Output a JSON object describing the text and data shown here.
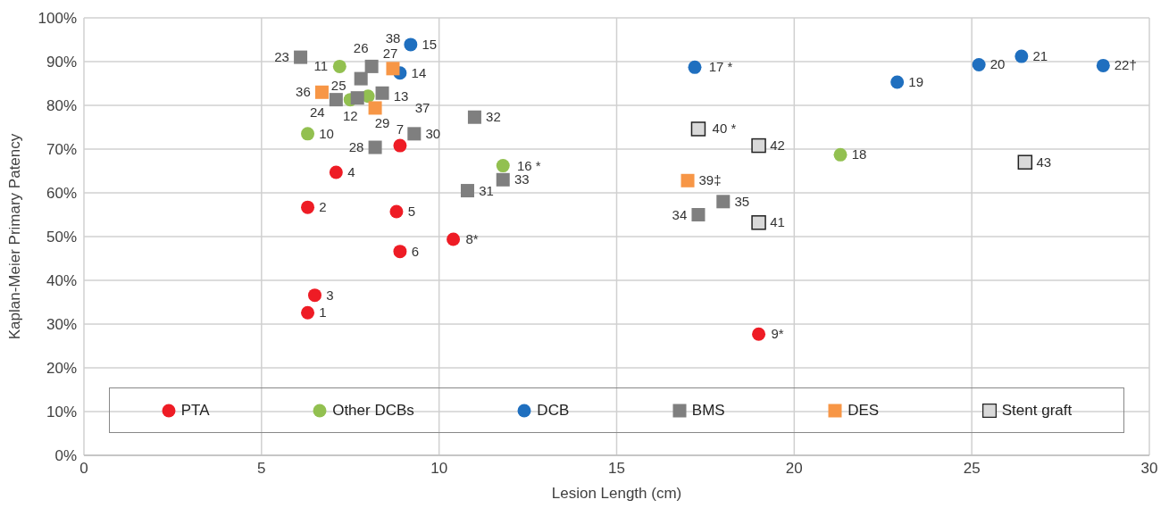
{
  "chart_data": {
    "type": "scatter",
    "xlabel": "Lesion Length (cm)",
    "ylabel": "Kaplan-Meier Primary Patency",
    "xlim": [
      0,
      30
    ],
    "xticks": [
      0,
      5,
      10,
      15,
      20,
      25,
      30
    ],
    "ylim": [
      0,
      100
    ],
    "yticks": [
      {
        "value": 0,
        "label": "0%"
      },
      {
        "value": 10,
        "label": "10%"
      },
      {
        "value": 20,
        "label": "20%"
      },
      {
        "value": 30,
        "label": "30%"
      },
      {
        "value": 40,
        "label": "40%"
      },
      {
        "value": 50,
        "label": "50%"
      },
      {
        "value": 60,
        "label": "60%"
      },
      {
        "value": 70,
        "label": "70%"
      },
      {
        "value": 80,
        "label": "80%"
      },
      {
        "value": 90,
        "label": "90%"
      },
      {
        "value": 100,
        "label": "100%"
      }
    ],
    "grid": true,
    "legend": "bottom",
    "series": [
      {
        "name": "PTA",
        "color": "#ee1c25",
        "marker": "circle",
        "x": [
          6.3,
          6.3,
          6.5,
          7.1,
          8.8,
          8.9,
          8.9,
          10.4,
          19.0
        ],
        "values": [
          32.6,
          56.7,
          36.6,
          64.7,
          55.7,
          46.6,
          70.8,
          49.4,
          27.7
        ]
      },
      {
        "name": "Other DCBs",
        "color": "#92c050",
        "marker": "circle",
        "x": [
          6.3,
          7.2,
          7.5,
          8.0,
          11.8,
          21.3
        ],
        "values": [
          73.5,
          88.9,
          81.3,
          82.1,
          66.2,
          68.7
        ]
      },
      {
        "name": "DCB",
        "color": "#1f6fbf",
        "marker": "circle",
        "x": [
          8.9,
          9.2,
          17.2,
          22.9,
          25.2,
          26.4,
          28.7
        ],
        "values": [
          87.4,
          93.9,
          88.7,
          85.3,
          89.3,
          91.2,
          89.1
        ]
      },
      {
        "name": "BMS",
        "color": "#7f7f7f",
        "marker": "square",
        "x": [
          6.1,
          7.1,
          7.7,
          7.8,
          8.1,
          8.2,
          8.4,
          9.3,
          10.8,
          11.0,
          11.8,
          17.3,
          18.0
        ],
        "values": [
          91.0,
          81.3,
          81.7,
          86.1,
          88.9,
          70.4,
          82.8,
          73.5,
          60.5,
          77.3,
          63.0,
          55.0,
          58.0
        ]
      },
      {
        "name": "DES",
        "color": "#f79646",
        "marker": "square",
        "x": [
          6.7,
          8.2,
          8.7,
          17.0
        ],
        "values": [
          83.0,
          79.4,
          88.4,
          62.8
        ]
      },
      {
        "name": "Stent graft",
        "color": "#d9d9d9",
        "marker": "square",
        "x": [
          17.3,
          19.0,
          19.0,
          26.5
        ],
        "values": [
          74.6,
          53.2,
          70.8,
          67.0
        ]
      }
    ],
    "annotations": [
      {
        "text": "1",
        "x": 6.3,
        "y": 32.6
      },
      {
        "text": "2",
        "x": 6.3,
        "y": 56.7
      },
      {
        "text": "3",
        "x": 6.5,
        "y": 36.6
      },
      {
        "text": "4",
        "x": 7.1,
        "y": 64.7
      },
      {
        "text": "5",
        "x": 8.8,
        "y": 55.7
      },
      {
        "text": "6",
        "x": 8.9,
        "y": 46.6
      },
      {
        "text": "7",
        "x": 8.9,
        "y": 70.8
      },
      {
        "text": "8*",
        "x": 10.4,
        "y": 49.4
      },
      {
        "text": "9*",
        "x": 19.0,
        "y": 27.7
      },
      {
        "text": "10",
        "x": 6.3,
        "y": 73.5
      },
      {
        "text": "11",
        "x": 7.2,
        "y": 88.9
      },
      {
        "text": "12",
        "x": 7.5,
        "y": 81.3
      },
      {
        "text": "13",
        "x": 8.0,
        "y": 82.1
      },
      {
        "text": "14",
        "x": 8.9,
        "y": 87.4
      },
      {
        "text": "15",
        "x": 9.2,
        "y": 93.9
      },
      {
        "text": "16 *",
        "x": 11.8,
        "y": 66.2
      },
      {
        "text": "17 *",
        "x": 17.2,
        "y": 88.7
      },
      {
        "text": "18",
        "x": 21.3,
        "y": 68.7
      },
      {
        "text": "19",
        "x": 22.9,
        "y": 85.3
      },
      {
        "text": "20",
        "x": 25.2,
        "y": 89.3
      },
      {
        "text": "21",
        "x": 26.4,
        "y": 91.2
      },
      {
        "text": "22†",
        "x": 28.7,
        "y": 89.1
      },
      {
        "text": "23",
        "x": 6.1,
        "y": 91.0
      },
      {
        "text": "24",
        "x": 7.1,
        "y": 81.3
      },
      {
        "text": "25",
        "x": 7.7,
        "y": 81.7
      },
      {
        "text": "26",
        "x": 7.8,
        "y": 86.1
      },
      {
        "text": "27",
        "x": 8.1,
        "y": 88.9
      },
      {
        "text": "28",
        "x": 8.2,
        "y": 70.4
      },
      {
        "text": "29",
        "x": 8.4,
        "y": 82.8
      },
      {
        "text": "30",
        "x": 9.3,
        "y": 73.5
      },
      {
        "text": "31",
        "x": 10.8,
        "y": 60.5
      },
      {
        "text": "32",
        "x": 11.0,
        "y": 77.3
      },
      {
        "text": "33",
        "x": 11.8,
        "y": 63.0
      },
      {
        "text": "34",
        "x": 17.3,
        "y": 55.0
      },
      {
        "text": "35",
        "x": 18.0,
        "y": 58.0
      },
      {
        "text": "36",
        "x": 6.7,
        "y": 83.0
      },
      {
        "text": "37",
        "x": 8.2,
        "y": 79.4
      },
      {
        "text": "38",
        "x": 8.7,
        "y": 88.4
      },
      {
        "text": "39‡",
        "x": 17.0,
        "y": 62.8
      },
      {
        "text": "40 *",
        "x": 17.3,
        "y": 74.6
      },
      {
        "text": "41",
        "x": 19.0,
        "y": 53.2
      },
      {
        "text": "42",
        "x": 19.0,
        "y": 70.8
      },
      {
        "text": "43",
        "x": 26.5,
        "y": 67.0
      }
    ]
  }
}
